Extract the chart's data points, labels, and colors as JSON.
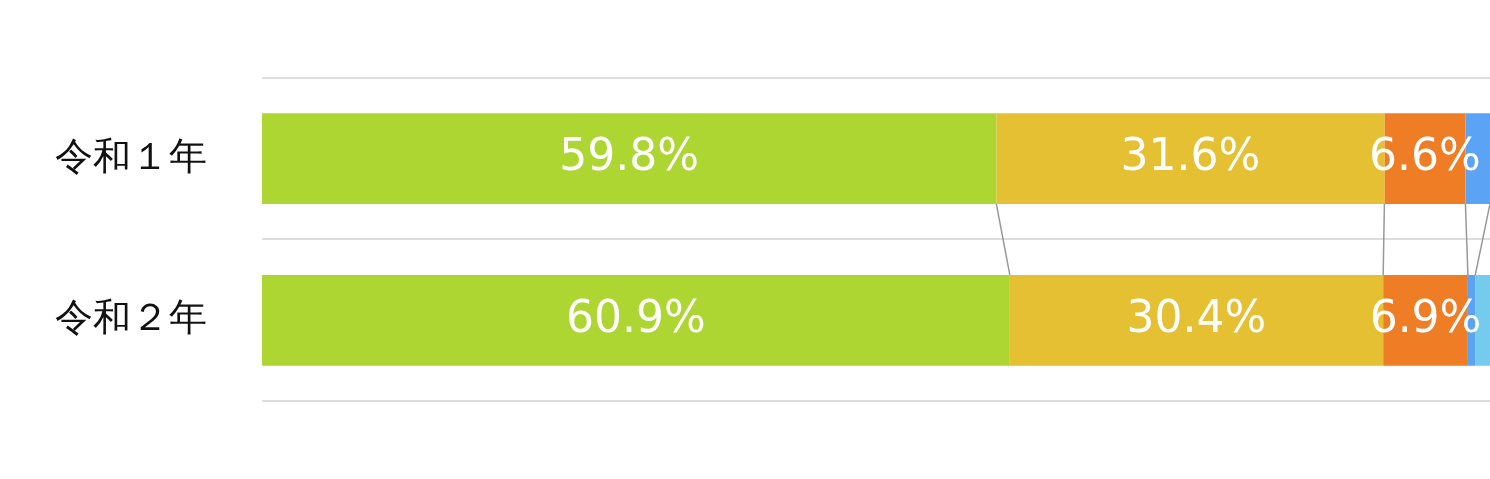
{
  "chart_data": {
    "type": "bar",
    "orientation": "horizontal",
    "stacked": true,
    "grid": "y",
    "legend": false,
    "tick_labels": "y",
    "categories": [
      "令和１年",
      "令和２年"
    ],
    "xlim": [
      0,
      100
    ],
    "series": [
      {
        "color": "#add633",
        "values": [
          59.8,
          60.9
        ],
        "value_labels": [
          "59.8%",
          "60.9%"
        ]
      },
      {
        "color": "#e5c033",
        "values": [
          31.6,
          30.4
        ],
        "value_labels": [
          "31.6%",
          "30.4%"
        ]
      },
      {
        "color": "#ee7d26",
        "values": [
          6.6,
          6.9
        ],
        "value_labels": [
          "6.6%",
          "6.9%"
        ]
      },
      {
        "color": "#5ba3f5",
        "values": [
          2.0,
          0.6
        ],
        "value_labels": [
          null,
          null
        ]
      },
      {
        "color": "#74cbeb",
        "values": [
          null,
          1.2
        ],
        "value_labels": [
          null,
          null
        ]
      }
    ]
  }
}
